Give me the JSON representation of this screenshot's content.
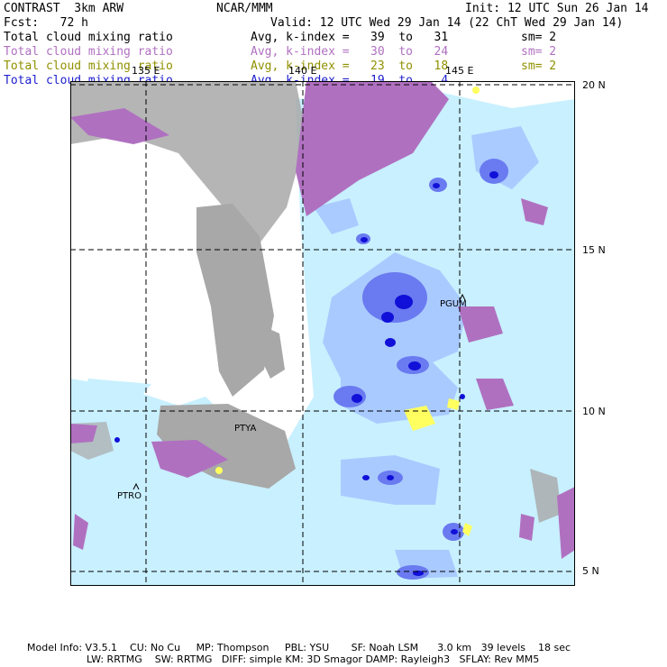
{
  "header": {
    "model": "CONTRAST  3km ARW",
    "org": "NCAR/MMM",
    "init": "Init: 12 UTC Sun 26 Jan 14",
    "fcst": "Fcst:   72 h",
    "valid": "Valid: 12 UTC Wed 29 Jan 14 (22 ChT Wed 29 Jan 14)"
  },
  "legend": [
    {
      "field": "Total cloud mixing ratio",
      "stat": "Avg, k-index =   39  to   31",
      "sm": "sm= 2",
      "color": "#000000"
    },
    {
      "field": "Total cloud mixing ratio",
      "stat": "Avg, k-index =   30  to   24",
      "sm": "sm= 2",
      "color": "#b070c0"
    },
    {
      "field": "Total cloud mixing ratio",
      "stat": "Avg, k-index =   23  to   18",
      "sm": "sm= 2",
      "color": "#909000"
    },
    {
      "field": "Total cloud mixing ratio",
      "stat": "Avg, k-index =   19  to    4",
      "sm": "",
      "color": "#2020d0"
    }
  ],
  "grid": {
    "lon_labels": [
      "135 E",
      "140 E",
      "145 E"
    ],
    "lat_labels": [
      "20 N",
      "15 N",
      "10 N",
      "5 N"
    ]
  },
  "stations": [
    "PGUM",
    "PTYA",
    "PTRO"
  ],
  "footer": {
    "line1": "Model Info: V3.5.1    CU: No Cu     MP: Thompson     PBL: YSU       SF: Noah LSM      3.0 km   39 levels    18 sec",
    "line2": "LW: RRTMG    SW: RRTMG   DIFF: simple KM: 3D Smagor DAMP: Rayleigh3   SFLAY: Rev MM5"
  },
  "colors": {
    "gray_cloud": "#a8a8a8",
    "purple_cloud": "#b070c0",
    "yellow_cloud": "#ffff60",
    "light_cyan": "#c8f0ff",
    "pale_blue": "#a8c8ff",
    "mid_blue": "#6a7af0",
    "deep_blue": "#1010d8"
  }
}
